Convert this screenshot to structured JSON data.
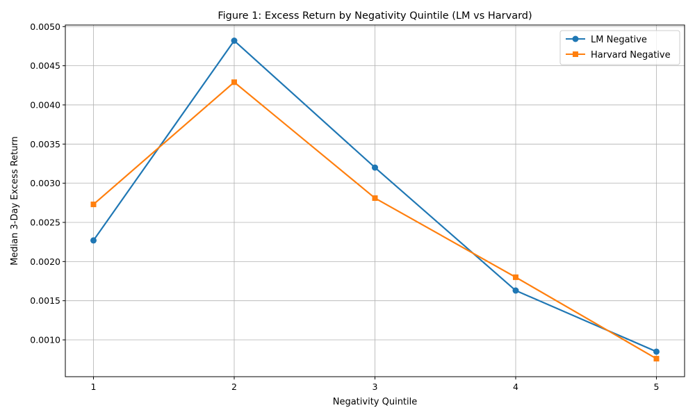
{
  "chart_data": {
    "type": "line",
    "title": "Figure 1: Excess Return by Negativity Quintile (LM vs Harvard)",
    "xlabel": "Negativity Quintile",
    "ylabel": "Median 3-Day Excess Return",
    "x": [
      1,
      2,
      3,
      4,
      5
    ],
    "x_tick_labels": [
      "1",
      "2",
      "3",
      "4",
      "5"
    ],
    "xlim": [
      0.8,
      5.2
    ],
    "ylim": [
      0.00053,
      0.00502
    ],
    "y_ticks": [
      0.001,
      0.0015,
      0.002,
      0.0025,
      0.003,
      0.0035,
      0.004,
      0.0045,
      0.005
    ],
    "y_tick_labels": [
      "0.0010",
      "0.0015",
      "0.0020",
      "0.0025",
      "0.0030",
      "0.0035",
      "0.0040",
      "0.0045",
      "0.0050"
    ],
    "grid": true,
    "legend_position": "top-right",
    "series": [
      {
        "name": "LM Negative",
        "color": "#1f77b4",
        "marker": "circle",
        "values": [
          0.00227,
          0.00482,
          0.0032,
          0.00163,
          0.00085
        ]
      },
      {
        "name": "Harvard Negative",
        "color": "#ff7f0e",
        "marker": "square",
        "values": [
          0.00273,
          0.00429,
          0.00281,
          0.0018,
          0.00076
        ]
      }
    ]
  }
}
